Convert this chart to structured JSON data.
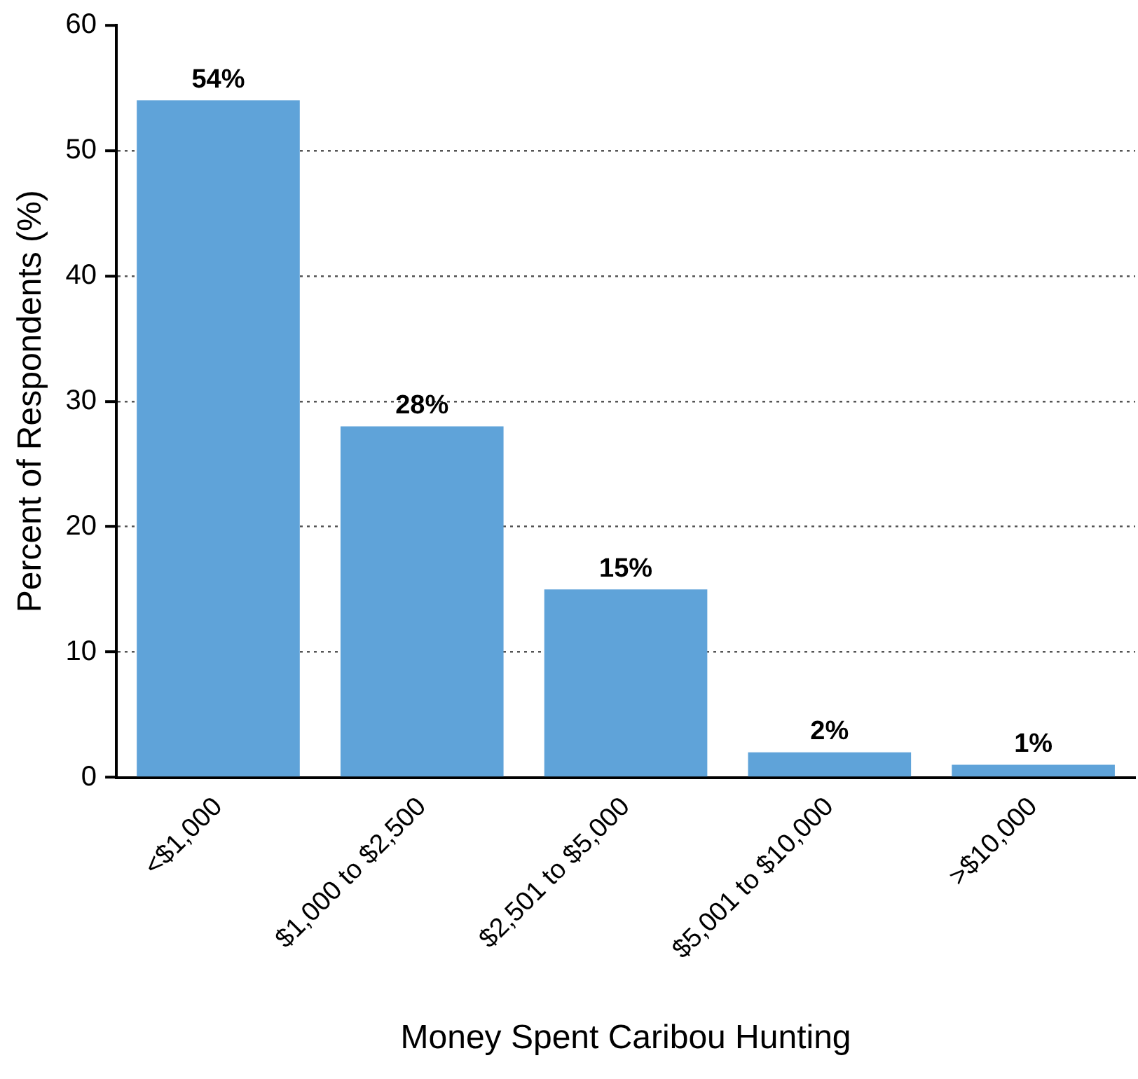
{
  "chart_data": {
    "type": "bar",
    "xlabel": "Money Spent Caribou Hunting",
    "ylabel": "Percent of Respondents (%)",
    "categories": [
      "<$1,000",
      "$1,000 to $2,500",
      "$2,501 to $5,000",
      "$5,001 to $10,000",
      ">$10,000"
    ],
    "values": [
      54,
      28,
      15,
      2,
      1
    ],
    "value_labels": [
      "54%",
      "28%",
      "15%",
      "2%",
      "1%"
    ],
    "color": "#5fa3d9",
    "ylim": [
      0,
      60
    ],
    "yticks": [
      0,
      10,
      20,
      30,
      40,
      50,
      60
    ],
    "grid": "y",
    "legend": false
  }
}
